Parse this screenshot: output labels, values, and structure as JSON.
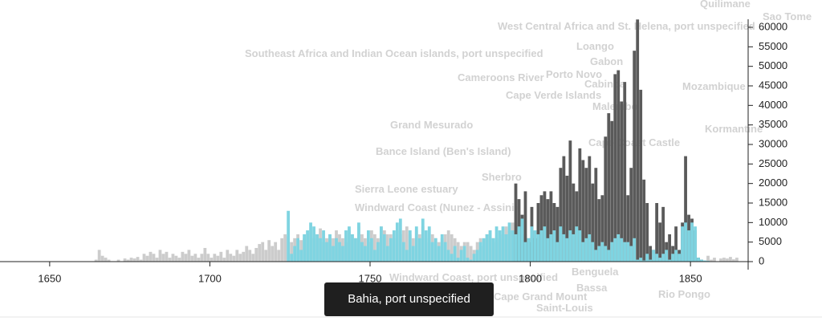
{
  "chart_data": {
    "type": "bar",
    "background_labels": [
      "Southeast Africa and Indian Ocean islands, port unspecified",
      "Cameroons River",
      "Porto Novo",
      "Cabinda",
      "Cape Verde Islands",
      "Malembo",
      "Grand Mesurado",
      "Bance Island (Ben's Island)",
      "Sherbro",
      "Sierra Leone estuary",
      "Windward Coast (Nunez - Assini)",
      "Cape Coast Castle",
      "Mozambique",
      "Gabon",
      "Loango",
      "West Central Africa and St. Helena, port unspecified",
      "Quilimane",
      "Benguela",
      "Bassa",
      "Cape Grand Mount",
      "Saint-Louis",
      "Windward Coast, port unspecified",
      "Kormantine",
      "Sao Tome",
      "Rio Pongo"
    ],
    "tooltip": "Bahia, port unspecified",
    "x": [
      1660,
      1661,
      1662,
      1663,
      1664,
      1665,
      1666,
      1667,
      1668,
      1669,
      1670,
      1671,
      1672,
      1673,
      1674,
      1675,
      1676,
      1677,
      1678,
      1679,
      1680,
      1681,
      1682,
      1683,
      1684,
      1685,
      1686,
      1687,
      1688,
      1689,
      1690,
      1691,
      1692,
      1693,
      1694,
      1695,
      1696,
      1697,
      1698,
      1699,
      1700,
      1701,
      1702,
      1703,
      1704,
      1705,
      1706,
      1707,
      1708,
      1709,
      1710,
      1711,
      1712,
      1713,
      1714,
      1715,
      1716,
      1717,
      1718,
      1719,
      1720,
      1721,
      1722,
      1723,
      1724,
      1725,
      1726,
      1727,
      1728,
      1729,
      1730,
      1731,
      1732,
      1733,
      1734,
      1735,
      1736,
      1737,
      1738,
      1739,
      1740,
      1741,
      1742,
      1743,
      1744,
      1745,
      1746,
      1747,
      1748,
      1749,
      1750,
      1751,
      1752,
      1753,
      1754,
      1755,
      1756,
      1757,
      1758,
      1759,
      1760,
      1761,
      1762,
      1763,
      1764,
      1765,
      1766,
      1767,
      1768,
      1769,
      1770,
      1771,
      1772,
      1773,
      1774,
      1775,
      1776,
      1777,
      1778,
      1779,
      1780,
      1781,
      1782,
      1783,
      1784,
      1785,
      1786,
      1787,
      1788,
      1789,
      1790,
      1791,
      1792,
      1793,
      1794,
      1795,
      1796,
      1797,
      1798,
      1799,
      1800,
      1801,
      1802,
      1803,
      1804,
      1805,
      1806,
      1807,
      1808,
      1809,
      1810,
      1811,
      1812,
      1813,
      1814,
      1815,
      1816,
      1817,
      1818,
      1819,
      1820,
      1821,
      1822,
      1823,
      1824,
      1825,
      1826,
      1827,
      1828,
      1829,
      1830,
      1831,
      1832,
      1833,
      1834,
      1835,
      1836,
      1837,
      1838,
      1839,
      1840,
      1841,
      1842,
      1843,
      1844,
      1845,
      1846,
      1847,
      1848,
      1849,
      1850,
      1851,
      1852,
      1853,
      1854,
      1855,
      1856,
      1857,
      1858,
      1859,
      1860,
      1861,
      1862,
      1863,
      1864,
      1865
    ],
    "series": [
      {
        "color": "#cccccc",
        "values": [
          0,
          0,
          0,
          0,
          500,
          3000,
          1500,
          1000,
          500,
          0,
          0,
          500,
          0,
          800,
          500,
          1000,
          800,
          1200,
          500,
          2000,
          1500,
          2500,
          2000,
          1000,
          3000,
          2000,
          2500,
          1000,
          2000,
          1500,
          1000,
          2500,
          2000,
          3000,
          1500,
          2000,
          1000,
          2000,
          3500,
          2000,
          1000,
          2000,
          1500,
          2500,
          1000,
          3000,
          2000,
          1500,
          3000,
          2000,
          2500,
          4000,
          3000,
          2000,
          3500,
          4500,
          5000,
          3000,
          5500,
          4000,
          5000,
          3000,
          6000,
          7000,
          6500,
          5000,
          6000,
          7000,
          5500,
          6000,
          7000,
          8000,
          6000,
          7000,
          8500,
          5000,
          6000,
          7000,
          6000,
          8000,
          7000,
          6000,
          5000,
          8000,
          7000,
          6000,
          9000,
          7000,
          6000,
          5000,
          8000,
          7000,
          6000,
          9000,
          8000,
          7000,
          7000,
          6000,
          8000,
          7000,
          8000,
          9000,
          7000,
          6000,
          8000,
          7000,
          9000,
          6000,
          5000,
          7000,
          6000,
          5000,
          6000,
          7000,
          8000,
          7000,
          6000,
          5000,
          4000,
          5000,
          5000,
          4000,
          3000,
          5000,
          6000,
          4000,
          7000,
          8000,
          6000,
          5000,
          6000,
          7000,
          9000,
          8000,
          10000,
          10000,
          9000,
          8000,
          7000,
          6000,
          null,
          null,
          null,
          null,
          null,
          null,
          null,
          null,
          null,
          null,
          null,
          null,
          null,
          null,
          null,
          null,
          null,
          null,
          null,
          null,
          null,
          null,
          null,
          null,
          null,
          null,
          null,
          null,
          null,
          null,
          null,
          null,
          null,
          null,
          null,
          null,
          null,
          null,
          null,
          null,
          null,
          null,
          null,
          null,
          null,
          null,
          null,
          null,
          null,
          null,
          null,
          null,
          null,
          null,
          null,
          1500,
          500,
          1000,
          0,
          800,
          1000,
          800,
          1200,
          600,
          1000,
          0
        ]
      },
      {
        "color": "#5a5a5a",
        "values": [
          null,
          null,
          null,
          null,
          null,
          null,
          null,
          null,
          null,
          null,
          null,
          null,
          null,
          null,
          null,
          null,
          null,
          null,
          null,
          null,
          null,
          null,
          null,
          null,
          null,
          null,
          null,
          null,
          null,
          null,
          null,
          null,
          null,
          null,
          null,
          null,
          null,
          null,
          null,
          null,
          null,
          null,
          null,
          null,
          null,
          null,
          null,
          null,
          null,
          null,
          null,
          null,
          null,
          null,
          null,
          null,
          null,
          null,
          null,
          null,
          null,
          null,
          null,
          null,
          null,
          null,
          null,
          null,
          null,
          null,
          null,
          null,
          null,
          null,
          null,
          null,
          null,
          null,
          null,
          null,
          null,
          null,
          null,
          null,
          null,
          null,
          null,
          null,
          null,
          null,
          null,
          null,
          null,
          null,
          null,
          null,
          null,
          null,
          null,
          null,
          null,
          null,
          null,
          null,
          null,
          null,
          null,
          null,
          null,
          null,
          null,
          null,
          null,
          null,
          null,
          null,
          null,
          null,
          null,
          null,
          null,
          null,
          null,
          null,
          null,
          null,
          null,
          null,
          null,
          null,
          null,
          null,
          null,
          null,
          null,
          20000,
          16000,
          12000,
          18000,
          5000,
          14000,
          6000,
          15000,
          17000,
          18000,
          16000,
          18000,
          15000,
          14000,
          24000,
          27000,
          22000,
          31000,
          20000,
          18000,
          29000,
          26000,
          24000,
          27000,
          20000,
          24000,
          16000,
          17000,
          32000,
          38000,
          36000,
          48000,
          49000,
          41000,
          46000,
          17000,
          24000,
          54000,
          62000,
          44000,
          21000,
          15000,
          4000,
          3000,
          15000,
          10000,
          14000,
          5000,
          7000,
          4000,
          9000,
          3000,
          10000,
          27000,
          12000,
          11000,
          8000,
          1000,
          500,
          null,
          null,
          null,
          null,
          null,
          null,
          null,
          null,
          null,
          null,
          null,
          null
        ]
      },
      {
        "color": "#7fd4e1",
        "values": [
          null,
          null,
          null,
          null,
          null,
          null,
          null,
          null,
          null,
          null,
          null,
          null,
          null,
          null,
          null,
          null,
          null,
          null,
          null,
          null,
          null,
          null,
          null,
          null,
          null,
          null,
          null,
          null,
          null,
          null,
          null,
          null,
          null,
          null,
          null,
          null,
          null,
          null,
          null,
          null,
          null,
          null,
          null,
          null,
          null,
          null,
          null,
          null,
          null,
          null,
          null,
          null,
          null,
          null,
          null,
          null,
          null,
          null,
          null,
          null,
          null,
          null,
          null,
          null,
          13000,
          2000,
          4000,
          6000,
          3000,
          7000,
          8000,
          10000,
          9000,
          7000,
          6000,
          8000,
          5000,
          7000,
          4000,
          6000,
          5000,
          4000,
          8000,
          9000,
          7000,
          6000,
          10000,
          5000,
          4000,
          8000,
          6000,
          3000,
          5000,
          9000,
          7000,
          4000,
          6000,
          8000,
          10000,
          11000,
          5000,
          3000,
          8000,
          4000,
          9000,
          6000,
          11000,
          8000,
          9000,
          5000,
          6000,
          4000,
          7000,
          5000,
          3000,
          2000,
          4000,
          1000,
          3000,
          4000,
          1000,
          500,
          2000,
          3000,
          5000,
          6000,
          7000,
          8000,
          6000,
          9000,
          8000,
          9000,
          7000,
          10000,
          8000,
          7000,
          9000,
          11000,
          5000,
          6000,
          9000,
          8000,
          7000,
          8000,
          9000,
          6000,
          7000,
          8000,
          5000,
          9000,
          7000,
          6000,
          8000,
          7000,
          9000,
          8000,
          5000,
          6000,
          7000,
          5000,
          3000,
          4000,
          5000,
          4000,
          3000,
          5000,
          6000,
          7000,
          6000,
          5000,
          5000,
          4000,
          6000,
          500,
          1000,
          300,
          2000,
          500,
          3000,
          2000,
          1000,
          2000,
          3000,
          500,
          2000,
          3000,
          2000,
          9000,
          10000,
          8000,
          10000,
          9000,
          1000,
          500,
          300,
          200,
          null,
          null,
          null,
          null,
          null,
          null,
          null,
          null,
          null,
          null
        ]
      }
    ],
    "xlim": [
      1634.5,
      1868
    ],
    "xticks": [
      1650,
      1700,
      1750,
      1800,
      1850
    ],
    "ylim": [
      0,
      60000
    ],
    "yticks": [
      0,
      5000,
      10000,
      15000,
      20000,
      25000,
      30000,
      35000,
      40000,
      45000,
      50000,
      55000,
      60000
    ]
  }
}
